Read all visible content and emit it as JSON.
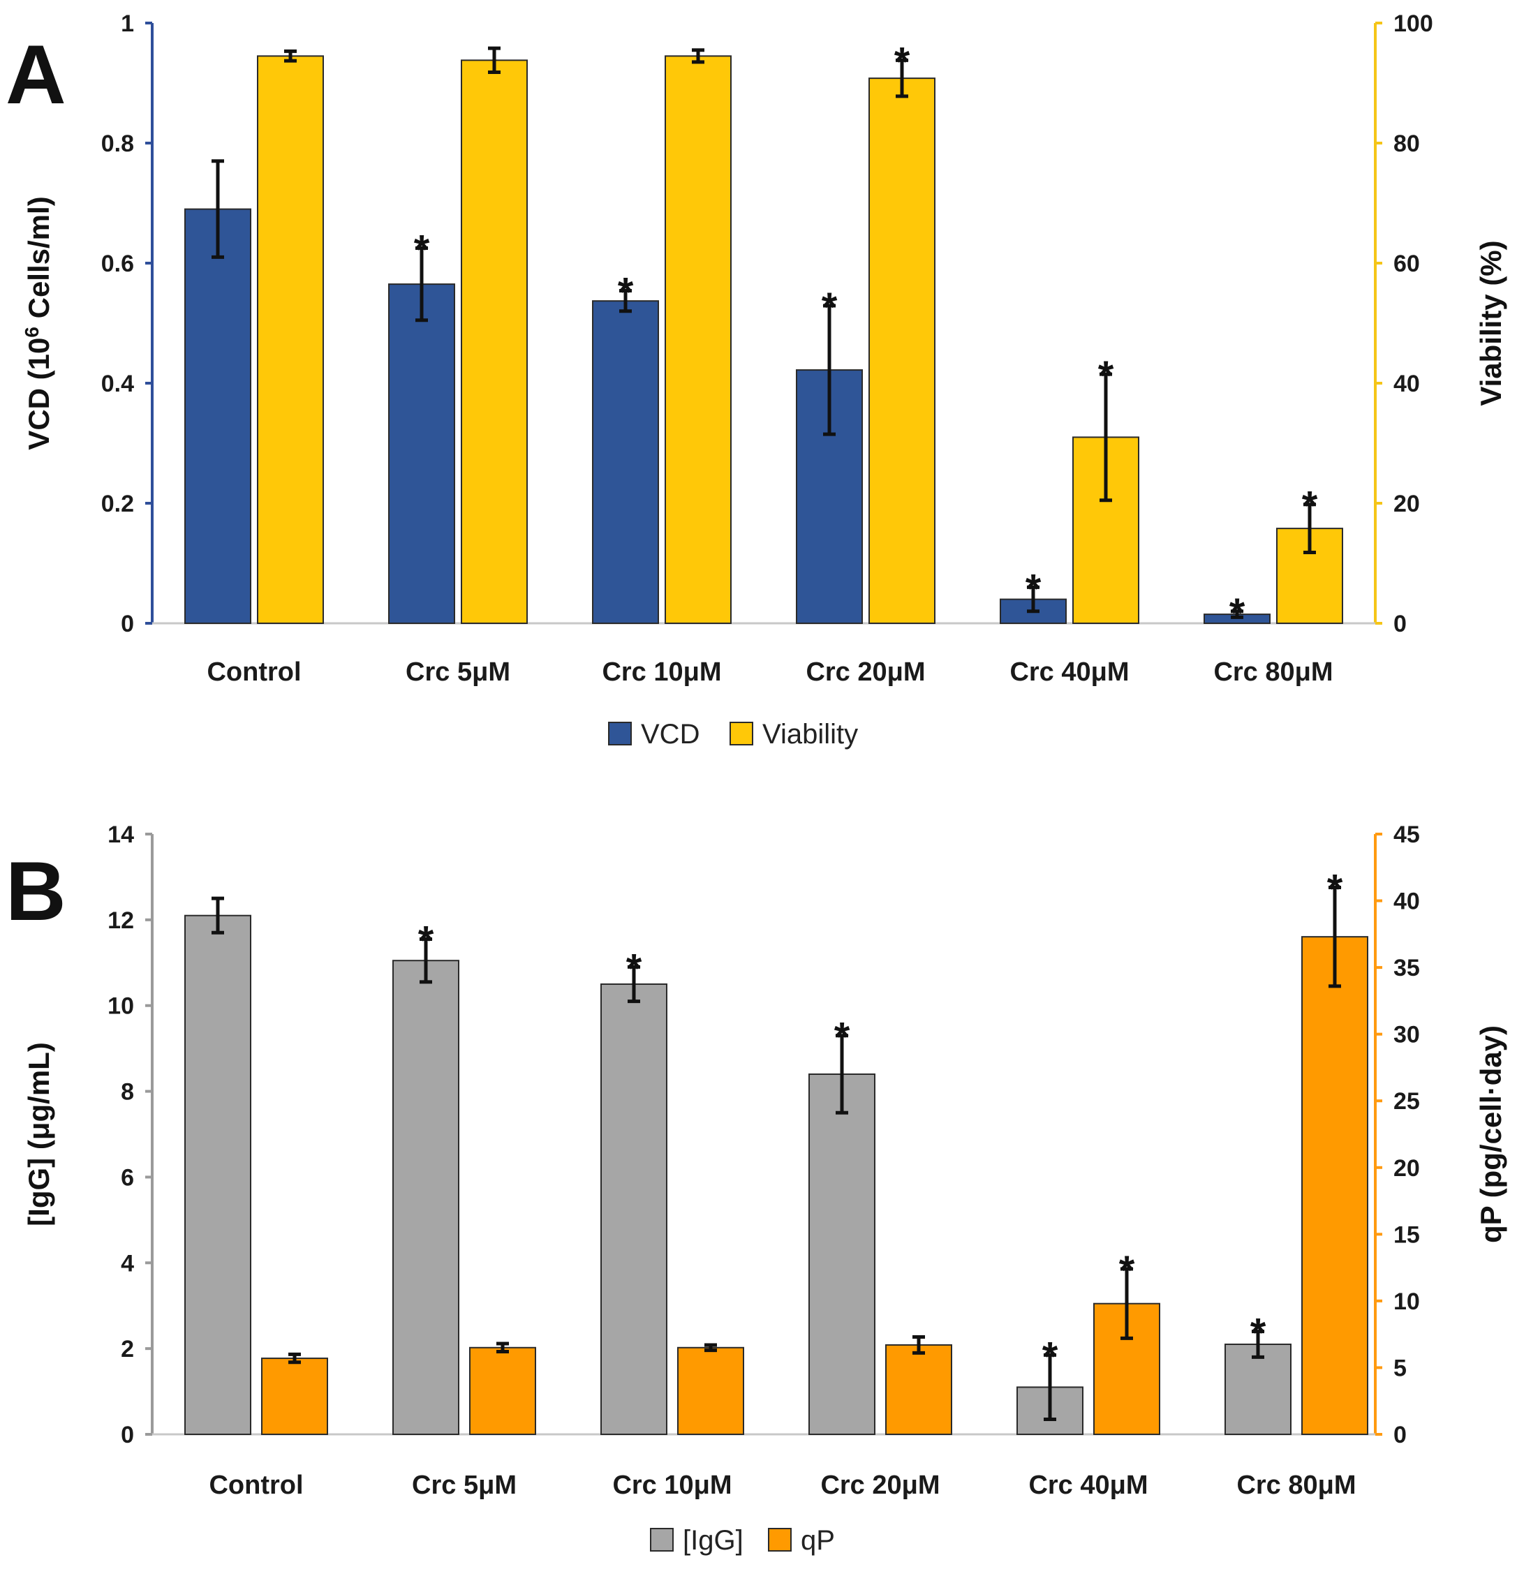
{
  "chart_data": [
    {
      "panel_label": "A",
      "type": "bar",
      "categories": [
        "Control",
        "Crc 5μM",
        "Crc 10μM",
        "Crc 20μM",
        "Crc 40μM",
        "Crc 80μM"
      ],
      "ylabel_left_main": "VCD (10",
      "ylabel_left_sup": "6",
      "ylabel_left_rest": " Cells/ml)",
      "ylabel_right": "Viability (%)",
      "ylim_left": [
        0,
        1
      ],
      "yticks_left": [
        "0",
        "0.2",
        "0.4",
        "0.6",
        "0.8",
        "1"
      ],
      "ylim_right": [
        0,
        100
      ],
      "yticks_right": [
        "0",
        "20",
        "40",
        "60",
        "80",
        "100"
      ],
      "left_axis_color": "#2f4f9a",
      "right_axis_color": "#f5c518",
      "legend_position": "bottom-center",
      "series": [
        {
          "name": "VCD",
          "axis": "left",
          "color": "#2f5597",
          "values": [
            0.69,
            0.565,
            0.537,
            0.422,
            0.04,
            0.015
          ],
          "errors": [
            0.08,
            0.06,
            0.017,
            0.107,
            0.02,
            0.005
          ],
          "significant": [
            false,
            true,
            true,
            true,
            true,
            true
          ]
        },
        {
          "name": "Viability",
          "axis": "right",
          "color": "#ffc808",
          "values": [
            94.5,
            93.8,
            94.5,
            90.8,
            31,
            15.8
          ],
          "errors": [
            0.8,
            2,
            1,
            3,
            10.5,
            4
          ],
          "significant": [
            false,
            false,
            false,
            true,
            true,
            true
          ]
        }
      ]
    },
    {
      "panel_label": "B",
      "type": "bar",
      "categories": [
        "Control",
        "Crc 5μM",
        "Crc 10μM",
        "Crc 20μM",
        "Crc 40μM",
        "Crc 80μM"
      ],
      "ylabel_left": "[IgG] (μg/mL)",
      "ylabel_right": "qP (pg/cell·day)",
      "ylim_left": [
        0,
        14
      ],
      "yticks_left": [
        "0",
        "2",
        "4",
        "6",
        "8",
        "10",
        "12",
        "14"
      ],
      "ylim_right": [
        0,
        45
      ],
      "yticks_right": [
        "0",
        "5",
        "10",
        "15",
        "20",
        "25",
        "30",
        "35",
        "40",
        "45"
      ],
      "left_axis_color": "#9a9a9a",
      "right_axis_color": "#ff9a10",
      "legend_position": "bottom-center",
      "series": [
        {
          "name": "[IgG]",
          "axis": "left",
          "color": "#a6a6a6",
          "values": [
            12.1,
            11.05,
            10.5,
            8.4,
            1.1,
            2.1
          ],
          "errors": [
            0.4,
            0.5,
            0.4,
            0.9,
            0.75,
            0.3
          ],
          "significant": [
            false,
            true,
            true,
            true,
            true,
            true
          ]
        },
        {
          "name": "qP",
          "axis": "right",
          "color": "#ff9a00",
          "values": [
            5.7,
            6.5,
            6.5,
            6.7,
            9.8,
            37.3
          ],
          "errors": [
            0.3,
            0.3,
            0.2,
            0.6,
            2.6,
            3.7
          ],
          "significant": [
            false,
            false,
            false,
            false,
            true,
            true
          ]
        }
      ]
    }
  ]
}
